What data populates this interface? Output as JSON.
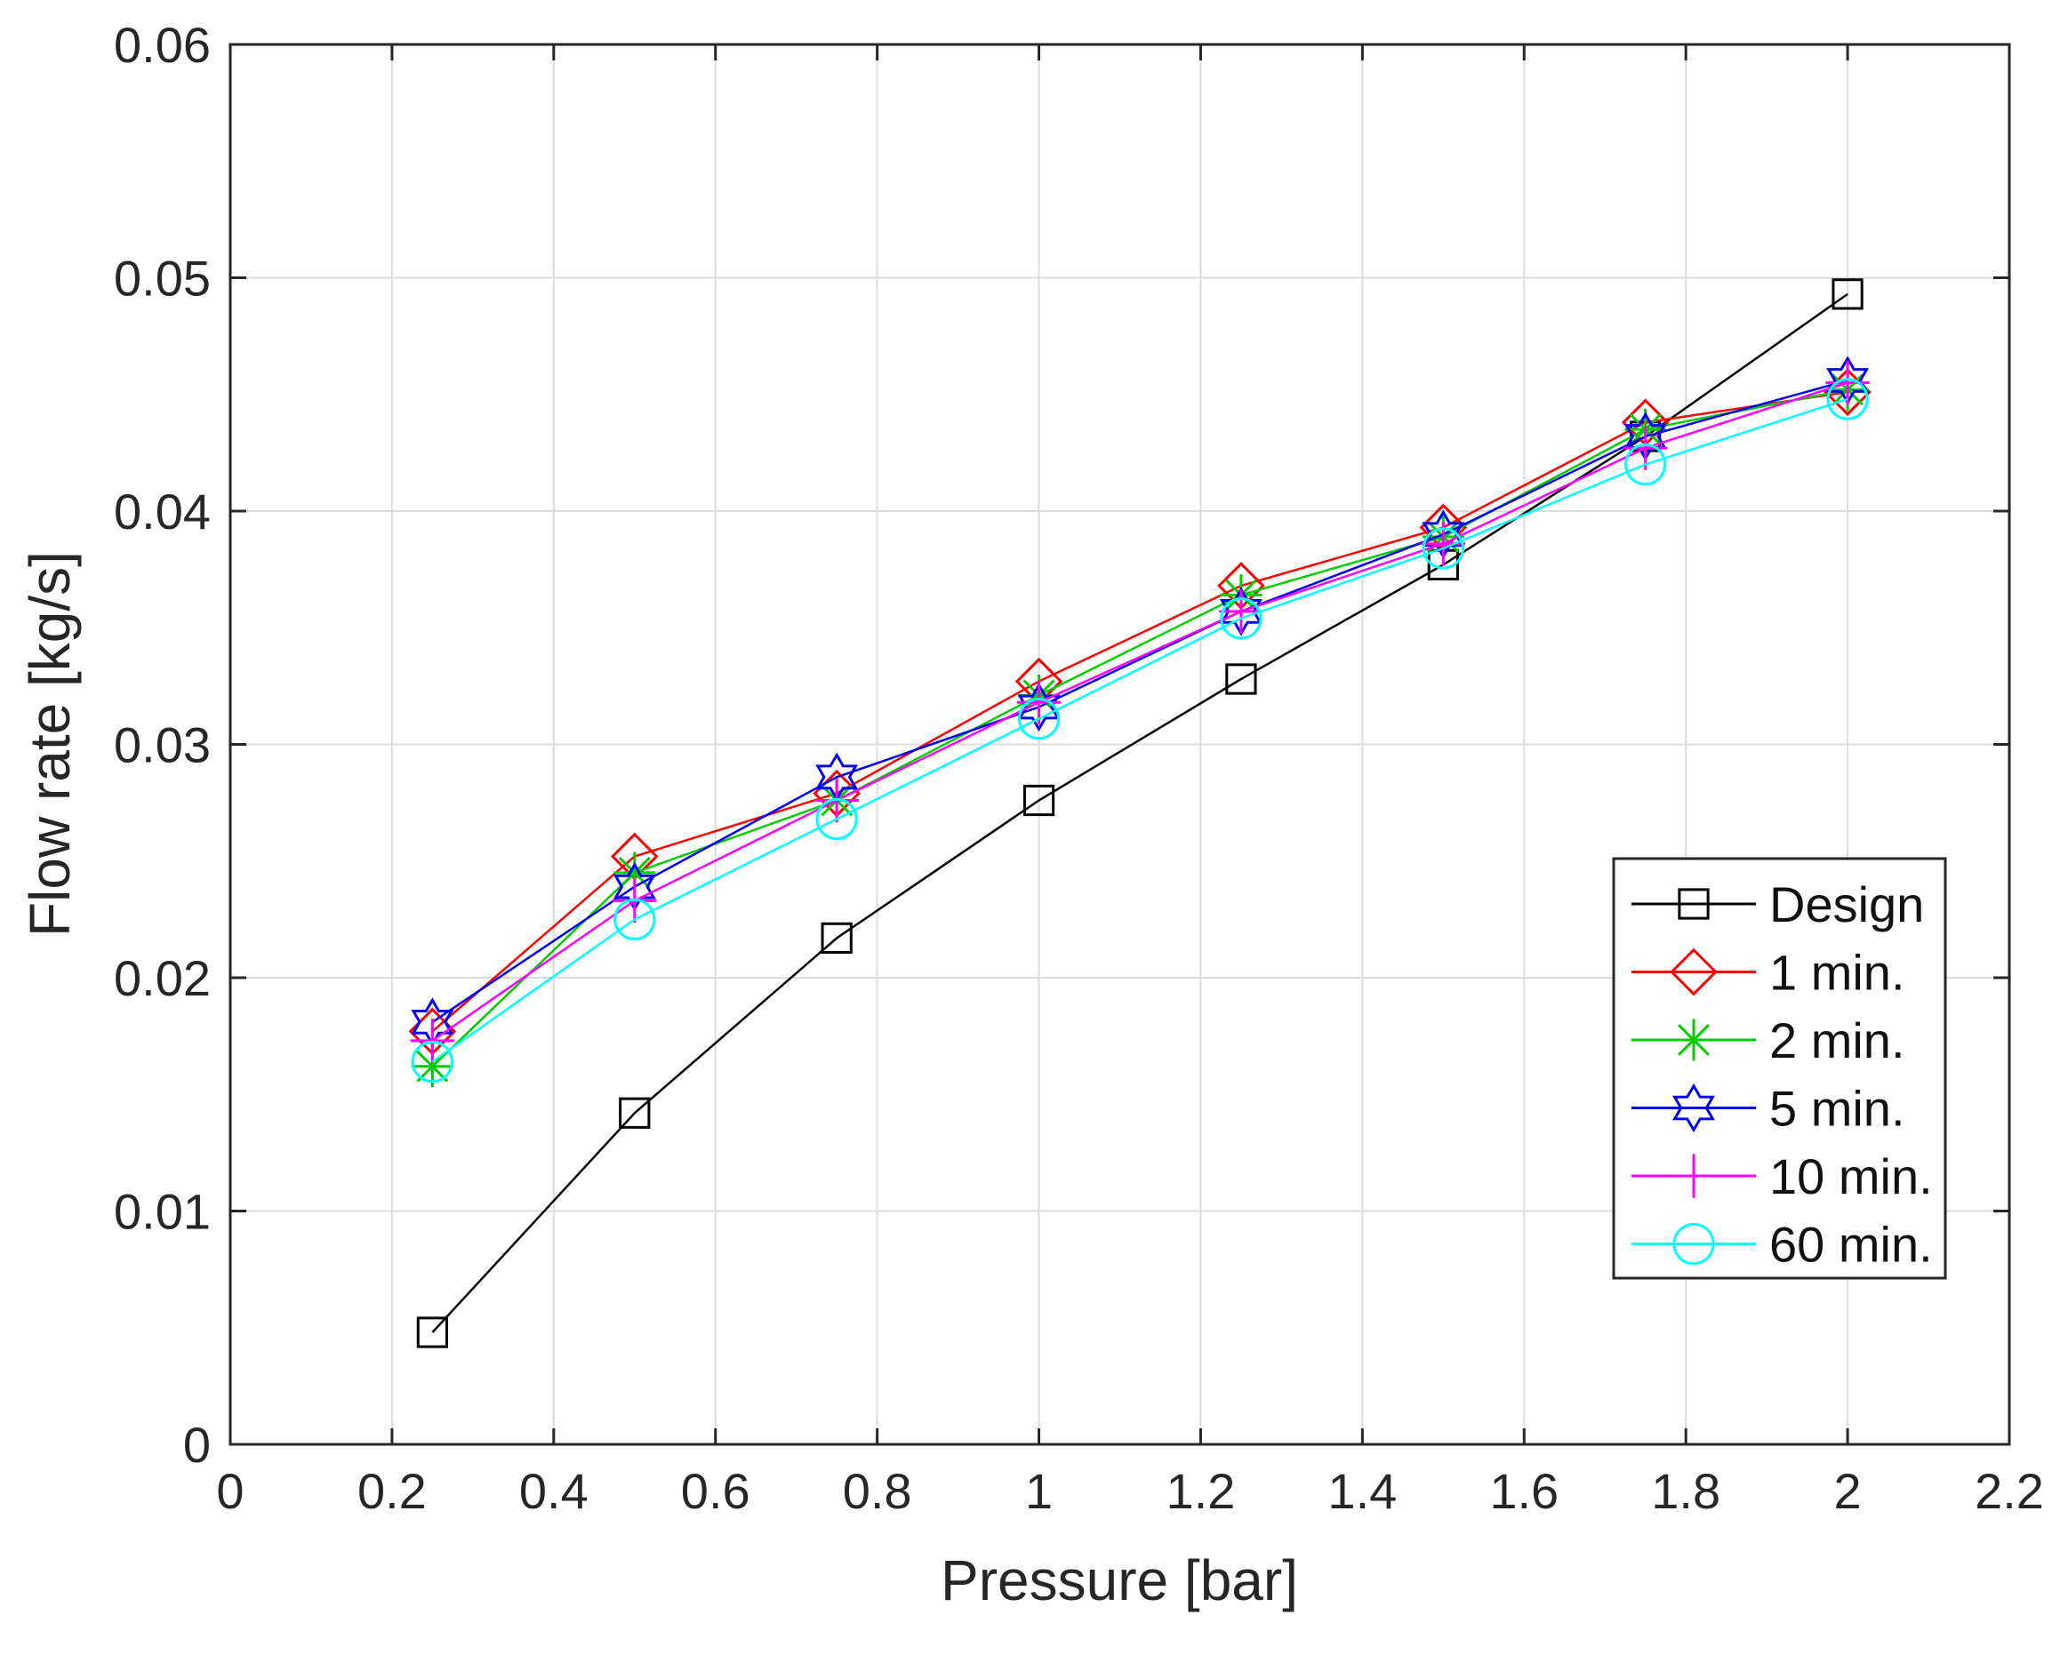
{
  "chart_data": {
    "type": "line",
    "title": "",
    "xlabel": "Pressure [bar]",
    "ylabel": "Flow rate [kg/s]",
    "xlim": [
      0,
      2.2
    ],
    "ylim": [
      0,
      0.06
    ],
    "x_ticks": [
      0,
      0.2,
      0.4,
      0.6,
      0.8,
      1,
      1.2,
      1.4,
      1.6,
      1.8,
      2,
      2.2
    ],
    "x_tick_labels": [
      "0",
      "0.2",
      "0.4",
      "0.6",
      "0.8",
      "1",
      "1.2",
      "1.4",
      "1.6",
      "1.8",
      "2",
      "2.2"
    ],
    "y_ticks": [
      0,
      0.01,
      0.02,
      0.03,
      0.04,
      0.05,
      0.06
    ],
    "y_tick_labels": [
      "0",
      "0.01",
      "0.02",
      "0.03",
      "0.04",
      "0.05",
      "0.06"
    ],
    "grid": true,
    "legend_position": "right",
    "x": [
      0.25,
      0.5,
      0.75,
      1,
      1.25,
      1.5,
      1.75,
      2
    ],
    "series": [
      {
        "name": "Design",
        "color": "#000000",
        "marker": "square",
        "values": [
          0.0048,
          0.0142,
          0.0217,
          0.0276,
          0.0328,
          0.0377,
          0.0432,
          0.0493
        ]
      },
      {
        "name": "1 min.",
        "color": "#ff0000",
        "marker": "diamond",
        "values": [
          0.0177,
          0.0252,
          0.0279,
          0.0327,
          0.0368,
          0.0393,
          0.0438,
          0.0451
        ]
      },
      {
        "name": "2 min.",
        "color": "#00cc00",
        "marker": "asterisk",
        "values": [
          0.0162,
          0.0245,
          0.0276,
          0.0321,
          0.0364,
          0.0389,
          0.0435,
          0.0452
        ]
      },
      {
        "name": "5 min.",
        "color": "#0000ff",
        "marker": "hexagram",
        "values": [
          0.0181,
          0.0239,
          0.0286,
          0.0316,
          0.0357,
          0.039,
          0.0432,
          0.0456
        ]
      },
      {
        "name": "10 min.",
        "color": "#ff00ff",
        "marker": "plus",
        "values": [
          0.0173,
          0.0233,
          0.0276,
          0.0318,
          0.0357,
          0.0386,
          0.0427,
          0.0455
        ]
      },
      {
        "name": "60 min.",
        "color": "#00ffff",
        "marker": "circle",
        "values": [
          0.0164,
          0.0225,
          0.0268,
          0.0311,
          0.0354,
          0.0384,
          0.042,
          0.0448
        ]
      }
    ]
  }
}
